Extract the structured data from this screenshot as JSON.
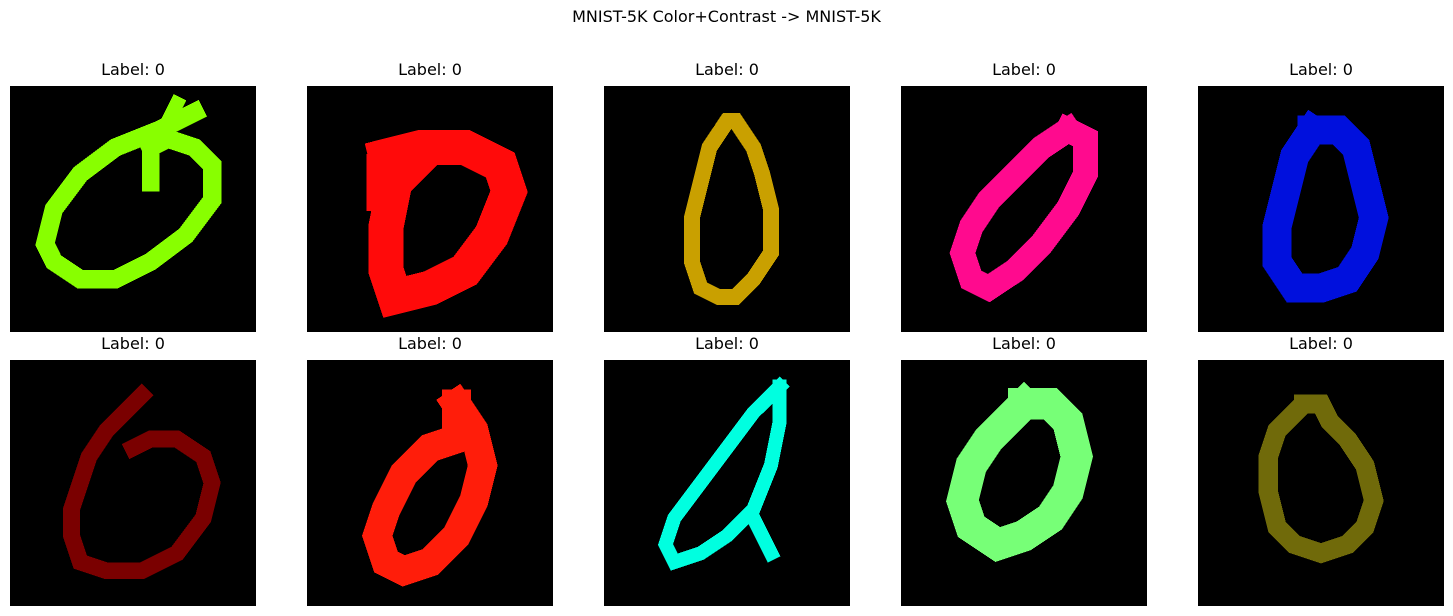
{
  "figure": {
    "title": "MNIST-5K Color+Contrast -> MNIST-5K"
  },
  "samples": [
    {
      "label": "Label: 0",
      "color": "#88ff00",
      "digit": "zero-with-tick-loop"
    },
    {
      "label": "Label: 0",
      "color": "#ff0a0a",
      "digit": "zero-bold"
    },
    {
      "label": "Label: 0",
      "color": "#c9a000",
      "digit": "zero-narrow"
    },
    {
      "label": "Label: 0",
      "color": "#ff0a8e",
      "digit": "zero-slanted"
    },
    {
      "label": "Label: 0",
      "color": "#0010dd",
      "digit": "zero-bold-narrow"
    },
    {
      "label": "Label: 0",
      "color": "#7a0000",
      "digit": "zero-open-loop"
    },
    {
      "label": "Label: 0",
      "color": "#ff1d0a",
      "digit": "zero-thick"
    },
    {
      "label": "Label: 0",
      "color": "#00ffe0",
      "digit": "zero-crossed-tail"
    },
    {
      "label": "Label: 0",
      "color": "#77ff77",
      "digit": "zero-round"
    },
    {
      "label": "Label: 0",
      "color": "#706a0a",
      "digit": "zero-dark-loop"
    }
  ]
}
